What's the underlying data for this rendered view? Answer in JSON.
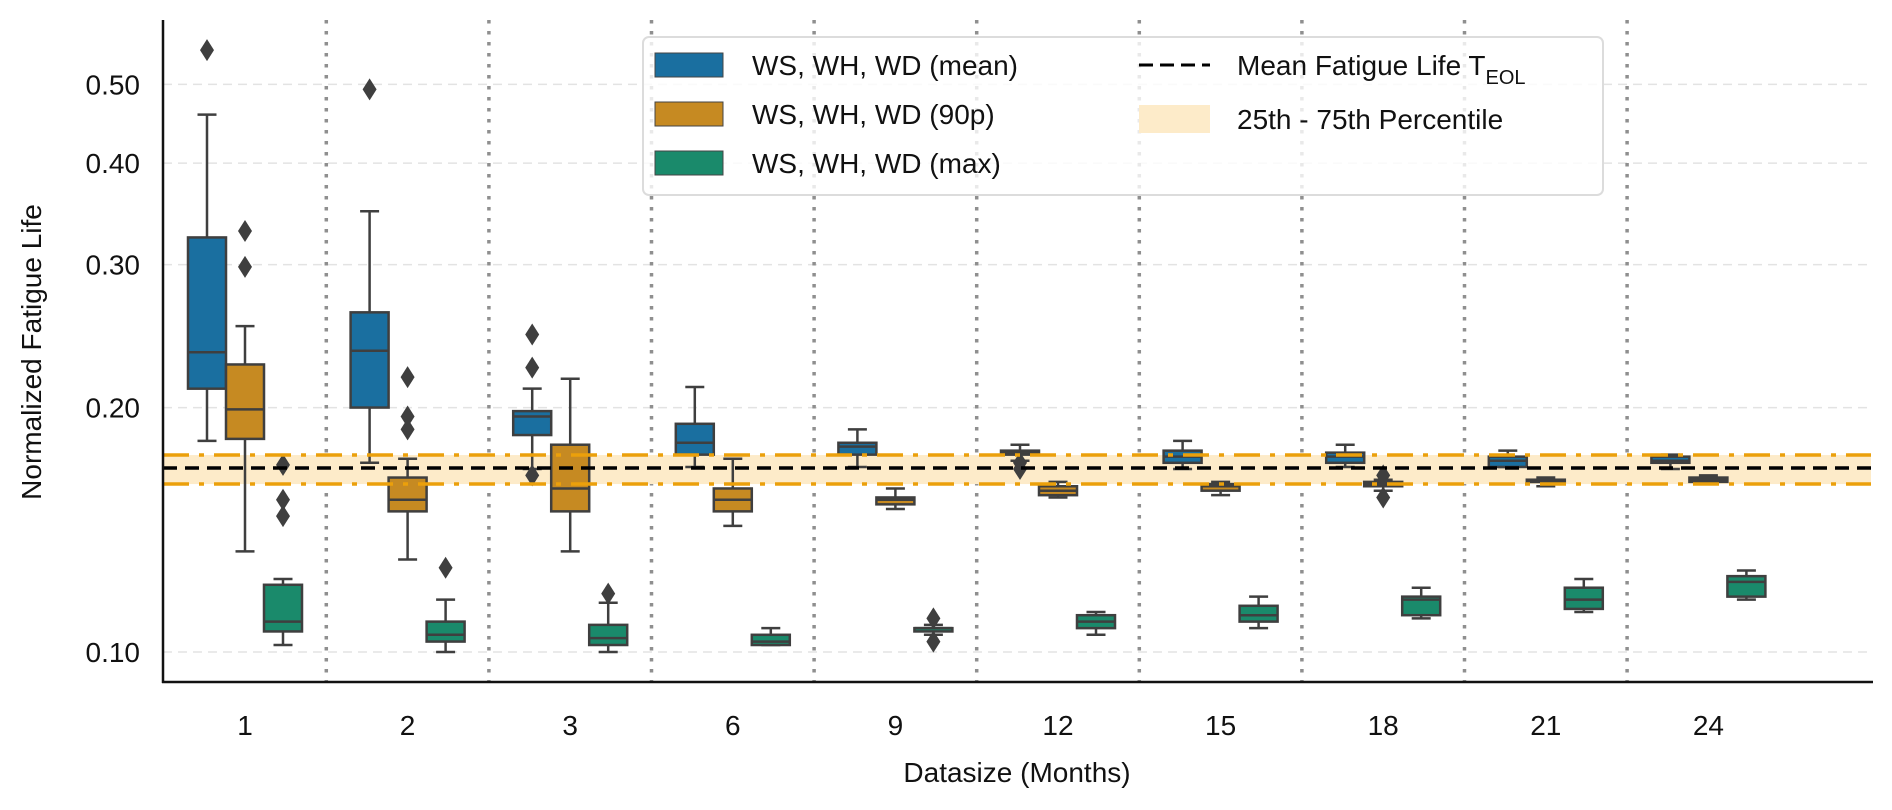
{
  "chart_data": {
    "type": "box",
    "title": "",
    "xlabel": "Datasize (Months)",
    "ylabel": "Normalized Fatigue Life",
    "yscale": "log",
    "ylim": [
      0.096,
      0.62
    ],
    "yticks": [
      0.1,
      0.2,
      0.3,
      0.4,
      0.5
    ],
    "ytick_labels": [
      "0.10",
      "0.20",
      "0.30",
      "0.40",
      "0.50"
    ],
    "categories": [
      "1",
      "2",
      "3",
      "6",
      "9",
      "12",
      "15",
      "18",
      "21",
      "24"
    ],
    "grid": "y-dashed",
    "group_separators": "dotted, between categories",
    "legend_position": "top-center",
    "series": [
      {
        "name": "WS, WH, WD (mean)",
        "color": "#1a6fa0",
        "boxes": [
          {
            "whislo": 0.182,
            "q1": 0.211,
            "med": 0.234,
            "q3": 0.324,
            "whishi": 0.459,
            "fliers": [
              0.551
            ]
          },
          {
            "whislo": 0.171,
            "q1": 0.2,
            "med": 0.235,
            "q3": 0.262,
            "whishi": 0.349,
            "fliers": [
              0.493
            ]
          },
          {
            "whislo": 0.168,
            "q1": 0.185,
            "med": 0.195,
            "q3": 0.198,
            "whishi": 0.211,
            "fliers": [
              0.246,
              0.224,
              0.165
            ]
          },
          {
            "whislo": 0.169,
            "q1": 0.175,
            "med": 0.181,
            "q3": 0.191,
            "whishi": 0.212,
            "fliers": []
          },
          {
            "whislo": 0.169,
            "q1": 0.175,
            "med": 0.179,
            "q3": 0.181,
            "whishi": 0.188,
            "fliers": []
          },
          {
            "whislo": 0.172,
            "q1": 0.175,
            "med": 0.176,
            "q3": 0.177,
            "whishi": 0.18,
            "fliers": [
              0.171,
              0.168
            ]
          },
          {
            "whislo": 0.168,
            "q1": 0.171,
            "med": 0.174,
            "q3": 0.177,
            "whishi": 0.182,
            "fliers": []
          },
          {
            "whislo": 0.169,
            "q1": 0.171,
            "med": 0.174,
            "q3": 0.176,
            "whishi": 0.18,
            "fliers": []
          },
          {
            "whislo": 0.169,
            "q1": 0.169,
            "med": 0.172,
            "q3": 0.174,
            "whishi": 0.177,
            "fliers": []
          },
          {
            "whislo": 0.168,
            "q1": 0.171,
            "med": 0.172,
            "q3": 0.174,
            "whishi": 0.175,
            "fliers": []
          }
        ]
      },
      {
        "name": "WS, WH, WD (90p)",
        "color": "#c68a22",
        "boxes": [
          {
            "whislo": 0.133,
            "q1": 0.183,
            "med": 0.199,
            "q3": 0.226,
            "whishi": 0.252,
            "fliers": [
              0.33,
              0.298
            ]
          },
          {
            "whislo": 0.13,
            "q1": 0.149,
            "med": 0.154,
            "q3": 0.164,
            "whishi": 0.173,
            "fliers": [
              0.218,
              0.195,
              0.188
            ]
          },
          {
            "whislo": 0.133,
            "q1": 0.149,
            "med": 0.159,
            "q3": 0.18,
            "whishi": 0.217,
            "fliers": []
          },
          {
            "whislo": 0.143,
            "q1": 0.149,
            "med": 0.154,
            "q3": 0.159,
            "whishi": 0.173,
            "fliers": []
          },
          {
            "whislo": 0.15,
            "q1": 0.152,
            "med": 0.154,
            "q3": 0.155,
            "whishi": 0.159,
            "fliers": []
          },
          {
            "whislo": 0.155,
            "q1": 0.156,
            "med": 0.158,
            "q3": 0.16,
            "whishi": 0.162,
            "fliers": []
          },
          {
            "whislo": 0.156,
            "q1": 0.158,
            "med": 0.16,
            "q3": 0.161,
            "whishi": 0.162,
            "fliers": []
          },
          {
            "whislo": 0.158,
            "q1": 0.16,
            "med": 0.161,
            "q3": 0.162,
            "whishi": 0.163,
            "fliers": [
              0.165,
              0.155
            ]
          },
          {
            "whislo": 0.16,
            "q1": 0.162,
            "med": 0.162,
            "q3": 0.163,
            "whishi": 0.164,
            "fliers": []
          },
          {
            "whislo": 0.161,
            "q1": 0.162,
            "med": 0.163,
            "q3": 0.164,
            "whishi": 0.165,
            "fliers": []
          }
        ]
      },
      {
        "name": "WS, WH, WD (max)",
        "color": "#1a8a6b",
        "boxes": [
          {
            "whislo": 0.102,
            "q1": 0.106,
            "med": 0.109,
            "q3": 0.121,
            "whishi": 0.123,
            "fliers": [
              0.17,
              0.154,
              0.147
            ]
          },
          {
            "whislo": 0.1,
            "q1": 0.103,
            "med": 0.105,
            "q3": 0.109,
            "whishi": 0.116,
            "fliers": [
              0.127
            ]
          },
          {
            "whislo": 0.1,
            "q1": 0.102,
            "med": 0.104,
            "q3": 0.108,
            "whishi": 0.115,
            "fliers": [
              0.118
            ]
          },
          {
            "whislo": 0.102,
            "q1": 0.102,
            "med": 0.103,
            "q3": 0.105,
            "whishi": 0.107,
            "fliers": []
          },
          {
            "whislo": 0.105,
            "q1": 0.106,
            "med": 0.107,
            "q3": 0.107,
            "whishi": 0.108,
            "fliers": [
              0.11,
              0.103
            ]
          },
          {
            "whislo": 0.105,
            "q1": 0.107,
            "med": 0.109,
            "q3": 0.111,
            "whishi": 0.112,
            "fliers": []
          },
          {
            "whislo": 0.107,
            "q1": 0.109,
            "med": 0.111,
            "q3": 0.114,
            "whishi": 0.117,
            "fliers": []
          },
          {
            "whislo": 0.11,
            "q1": 0.111,
            "med": 0.116,
            "q3": 0.117,
            "whishi": 0.12,
            "fliers": []
          },
          {
            "whislo": 0.112,
            "q1": 0.113,
            "med": 0.116,
            "q3": 0.12,
            "whishi": 0.123,
            "fliers": []
          },
          {
            "whislo": 0.116,
            "q1": 0.117,
            "med": 0.122,
            "q3": 0.124,
            "whishi": 0.126,
            "fliers": []
          }
        ]
      }
    ],
    "reference_lines": {
      "mean": {
        "name": "Mean Fatigue Life T",
        "subscript": "EOL",
        "value": 0.1685,
        "color": "#000000",
        "style": "dashed"
      },
      "band": {
        "name": "25th - 75th Percentile",
        "low": 0.161,
        "high": 0.1748,
        "fill": "#fdebc9",
        "edge_color": "#eba00b",
        "edge_style": "dashdot"
      }
    }
  },
  "legend": {
    "items": [
      {
        "label": "WS, WH, WD (mean)",
        "kind": "patch",
        "color": "#1a6fa0"
      },
      {
        "label": "WS, WH, WD (90p)",
        "kind": "patch",
        "color": "#c68a22"
      },
      {
        "label": "WS, WH, WD (max)",
        "kind": "patch",
        "color": "#1a8a6b"
      },
      {
        "label": "Mean Fatigue Life T",
        "sub": "EOL",
        "kind": "dashed-line",
        "color": "#000000"
      },
      {
        "label": "25th - 75th Percentile",
        "kind": "patch",
        "color": "#fdebc9"
      }
    ]
  }
}
